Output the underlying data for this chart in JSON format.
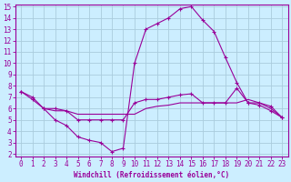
{
  "xlabel": "Windchill (Refroidissement éolien,°C)",
  "background_color": "#cceeff",
  "grid_color": "#aaccdd",
  "line_color": "#990099",
  "xlim": [
    -0.5,
    23.5
  ],
  "ylim": [
    1.8,
    15.2
  ],
  "yticks": [
    2,
    3,
    4,
    5,
    6,
    7,
    8,
    9,
    10,
    11,
    12,
    13,
    14,
    15
  ],
  "xticks": [
    0,
    1,
    2,
    3,
    4,
    5,
    6,
    7,
    8,
    9,
    10,
    11,
    12,
    13,
    14,
    15,
    16,
    17,
    18,
    19,
    20,
    21,
    22,
    23
  ],
  "line1_x": [
    0,
    1,
    2,
    3,
    4,
    5,
    6,
    7,
    8,
    9,
    10,
    11,
    12,
    13,
    14,
    15,
    16,
    17,
    18,
    19,
    20,
    21,
    22,
    23
  ],
  "line1_y": [
    7.5,
    7.0,
    6.0,
    5.0,
    4.5,
    3.5,
    3.2,
    3.0,
    2.2,
    2.5,
    10.0,
    13.0,
    13.5,
    14.0,
    14.8,
    15.0,
    13.8,
    12.8,
    10.5,
    8.3,
    6.5,
    6.3,
    5.8,
    5.2
  ],
  "line2_x": [
    0,
    1,
    2,
    3,
    4,
    5,
    6,
    7,
    8,
    9,
    10,
    11,
    12,
    13,
    14,
    15,
    16,
    17,
    18,
    19,
    20,
    21,
    22,
    23
  ],
  "line2_y": [
    7.5,
    6.8,
    6.0,
    6.0,
    5.8,
    5.0,
    5.0,
    5.0,
    5.0,
    5.0,
    6.5,
    6.8,
    6.8,
    7.0,
    7.2,
    7.3,
    6.5,
    6.5,
    6.5,
    7.8,
    6.5,
    6.5,
    6.2,
    5.2
  ],
  "line3_x": [
    2,
    3,
    4,
    5,
    6,
    7,
    8,
    9,
    10,
    11,
    12,
    13,
    14,
    15,
    16,
    17,
    18,
    19,
    20,
    21,
    22,
    23
  ],
  "line3_y": [
    6.0,
    5.8,
    5.8,
    5.5,
    5.5,
    5.5,
    5.5,
    5.5,
    5.5,
    6.0,
    6.2,
    6.3,
    6.5,
    6.5,
    6.5,
    6.5,
    6.5,
    6.5,
    6.8,
    6.5,
    6.0,
    5.2
  ],
  "tick_fontsize": 5.5,
  "xlabel_fontsize": 5.5
}
